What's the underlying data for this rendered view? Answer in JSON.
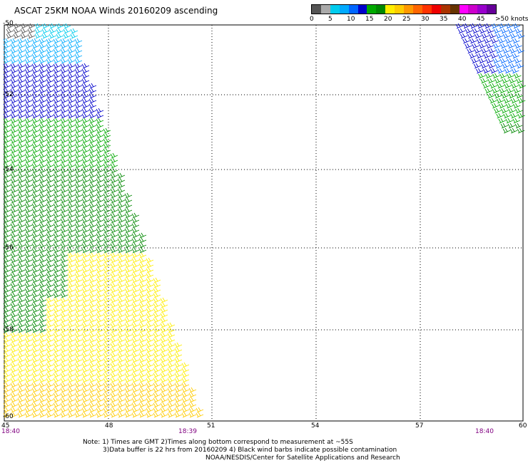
{
  "title": "ASCAT 25KM NOAA Winds 20160209 ascending",
  "legend": {
    "units": "knots",
    "colors": [
      "#555555",
      "#aaaaaa",
      "#00ccee",
      "#00aaff",
      "#0066ff",
      "#0000cc",
      "#00aa00",
      "#008800",
      "#ffee00",
      "#ffcc00",
      "#ff9900",
      "#ff6600",
      "#ff3300",
      "#ee0000",
      "#aa3300",
      "#663300",
      "#ff00ff",
      "#cc00cc",
      "#9900cc",
      "#660099"
    ],
    "labels": [
      "0",
      "5",
      "10",
      "15",
      "20",
      "25",
      "30",
      "35",
      "40",
      "45",
      ">50 knots"
    ]
  },
  "axes": {
    "lon_labels": [
      "45",
      "48",
      "51",
      "54",
      "57",
      "60"
    ],
    "lat_labels": [
      "-50",
      "-52",
      "-54",
      "-56",
      "-58",
      "-60"
    ],
    "lon_range": [
      45,
      60
    ],
    "lat_range": [
      -60,
      -50
    ]
  },
  "times": [
    "18:40",
    "18:39",
    "18:40"
  ],
  "notes": [
    "Note: 1) Times are GMT 2)Times along bottom correspond to measurement at ~55S",
    "3)Data buffer is 22 hrs from 20160209 4) Black wind barbs indicate possible contamination",
    "NOAA/NESDIS/Center for Satellite Applications and Research"
  ]
}
